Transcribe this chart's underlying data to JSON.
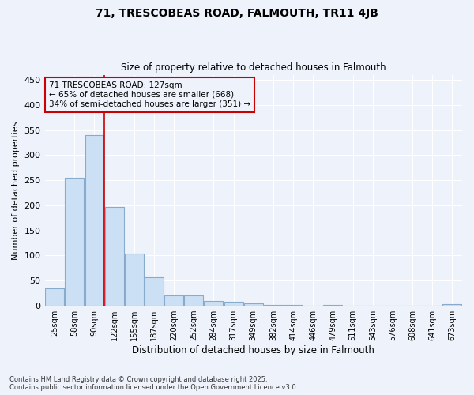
{
  "title": "71, TRESCOBEAS ROAD, FALMOUTH, TR11 4JB",
  "subtitle": "Size of property relative to detached houses in Falmouth",
  "xlabel": "Distribution of detached houses by size in Falmouth",
  "ylabel": "Number of detached properties",
  "footnote1": "Contains HM Land Registry data © Crown copyright and database right 2025.",
  "footnote2": "Contains public sector information licensed under the Open Government Licence v3.0.",
  "annotation_title": "71 TRESCOBEAS ROAD: 127sqm",
  "annotation_line1": "← 65% of detached houses are smaller (668)",
  "annotation_line2": "34% of semi-detached houses are larger (351) →",
  "categories": [
    "25sqm",
    "58sqm",
    "90sqm",
    "122sqm",
    "155sqm",
    "187sqm",
    "220sqm",
    "252sqm",
    "284sqm",
    "317sqm",
    "349sqm",
    "382sqm",
    "414sqm",
    "446sqm",
    "479sqm",
    "511sqm",
    "543sqm",
    "576sqm",
    "608sqm",
    "641sqm",
    "673sqm"
  ],
  "values": [
    35,
    255,
    340,
    197,
    104,
    57,
    20,
    20,
    10,
    8,
    5,
    2,
    1,
    0,
    1,
    0,
    0,
    0,
    0,
    0,
    3
  ],
  "bar_color": "#cce0f5",
  "bar_edge_color": "#88aacc",
  "vline_color": "#cc0000",
  "vline_x_index": 2.5,
  "annotation_box_color": "#cc0000",
  "background_color": "#eef2fb",
  "grid_color": "#ffffff",
  "ylim": [
    0,
    460
  ],
  "yticks": [
    0,
    50,
    100,
    150,
    200,
    250,
    300,
    350,
    400,
    450
  ],
  "figwidth": 6.0,
  "figheight": 5.0,
  "dpi": 100
}
